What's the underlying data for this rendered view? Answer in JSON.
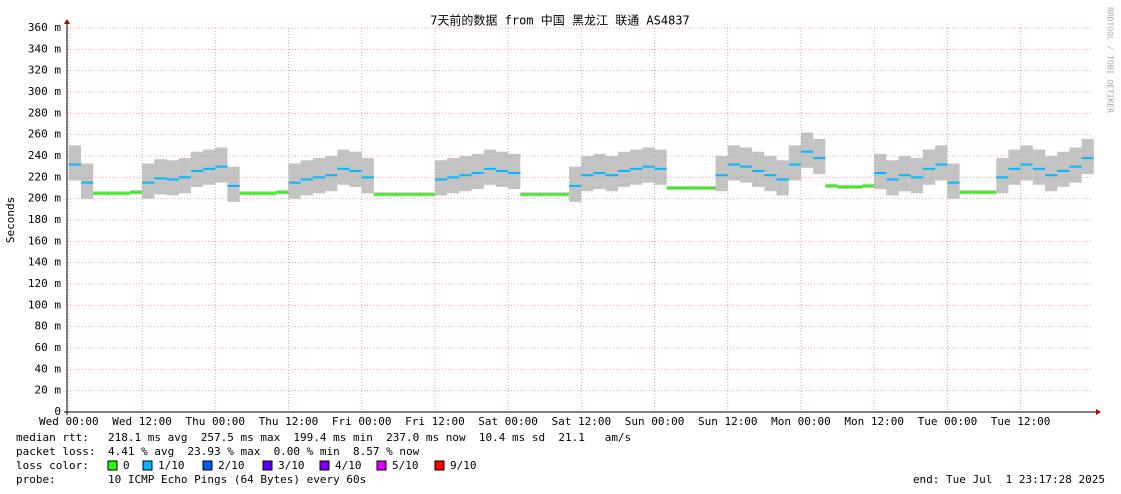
{
  "chart_data": {
    "type": "smokeping",
    "title": "7天前的数据 from 中国 黑龙江 联通 AS4837",
    "y_label": "Seconds",
    "watermark": "RRDTOOL / TOBI OETIKER",
    "xlim": [
      -0.3,
      167.7
    ],
    "xticks": [
      {
        "value": 0,
        "label": "Wed 00:00"
      },
      {
        "value": 12,
        "label": "Wed 12:00"
      },
      {
        "value": 24,
        "label": "Thu 00:00"
      },
      {
        "value": 36,
        "label": "Thu 12:00"
      },
      {
        "value": 48,
        "label": "Fri 00:00"
      },
      {
        "value": 60,
        "label": "Fri 12:00"
      },
      {
        "value": 72,
        "label": "Sat 00:00"
      },
      {
        "value": 84,
        "label": "Sat 12:00"
      },
      {
        "value": 96,
        "label": "Sun 00:00"
      },
      {
        "value": 108,
        "label": "Sun 12:00"
      },
      {
        "value": 120,
        "label": "Mon 00:00"
      },
      {
        "value": 132,
        "label": "Mon 12:00"
      },
      {
        "value": 144,
        "label": "Tue 00:00"
      },
      {
        "value": 156,
        "label": "Tue 12:00"
      }
    ],
    "ylim": [
      0,
      0.36
    ],
    "yticks": [
      0,
      {
        "value": 0.02,
        "label": "20 m"
      },
      {
        "value": 0.04,
        "label": "40 m"
      },
      {
        "value": 0.06,
        "label": "60 m"
      },
      {
        "value": 0.08,
        "label": "80 m"
      },
      {
        "value": 0.1,
        "label": "100 m"
      },
      {
        "value": 0.12,
        "label": "120 m"
      },
      {
        "value": 0.14,
        "label": "140 m"
      },
      {
        "value": 0.16,
        "label": "160 m"
      },
      {
        "value": 0.18,
        "label": "180 m"
      },
      {
        "value": 0.2,
        "label": "200 m"
      },
      {
        "value": 0.22,
        "label": "220 m"
      },
      {
        "value": 0.24,
        "label": "240 m"
      },
      {
        "value": 0.26,
        "label": "260 m"
      },
      {
        "value": 0.28,
        "label": "280 m"
      },
      {
        "value": 0.3,
        "label": "300 m"
      },
      {
        "value": 0.32,
        "label": "320 m"
      },
      {
        "value": 0.34,
        "label": "340 m"
      },
      {
        "value": 0.36,
        "label": "360 m"
      }
    ],
    "grid": true,
    "x": [
      0,
      2,
      4,
      6,
      8,
      10,
      12,
      14,
      16,
      18,
      20,
      22,
      24,
      26,
      28,
      30,
      32,
      34,
      36,
      38,
      40,
      42,
      44,
      46,
      48,
      50,
      52,
      54,
      56,
      58,
      60,
      62,
      64,
      66,
      68,
      70,
      72,
      74,
      76,
      78,
      80,
      82,
      84,
      86,
      88,
      90,
      92,
      94,
      96,
      98,
      100,
      102,
      104,
      106,
      108,
      110,
      112,
      114,
      116,
      118,
      120,
      122,
      124,
      126,
      128,
      130,
      132,
      134,
      136,
      138,
      140,
      142,
      144,
      146,
      148,
      150,
      152,
      154,
      156,
      158,
      160,
      162,
      164,
      166
    ],
    "median": [
      0.232,
      0.215,
      0.205,
      0.205,
      0.205,
      0.206,
      0.215,
      0.219,
      0.218,
      0.22,
      0.226,
      0.228,
      0.23,
      0.212,
      0.205,
      0.205,
      0.205,
      0.206,
      0.215,
      0.218,
      0.22,
      0.222,
      0.228,
      0.226,
      0.22,
      0.204,
      0.204,
      0.204,
      0.204,
      0.204,
      0.218,
      0.22,
      0.222,
      0.224,
      0.228,
      0.226,
      0.224,
      0.204,
      0.204,
      0.204,
      0.204,
      0.212,
      0.222,
      0.224,
      0.222,
      0.226,
      0.228,
      0.23,
      0.228,
      0.21,
      0.21,
      0.21,
      0.21,
      0.222,
      0.232,
      0.23,
      0.226,
      0.222,
      0.218,
      0.232,
      0.244,
      0.238,
      0.212,
      0.211,
      0.211,
      0.212,
      0.224,
      0.218,
      0.222,
      0.22,
      0.228,
      0.232,
      0.215,
      0.206,
      0.206,
      0.206,
      0.22,
      0.228,
      0.232,
      0.228,
      0.222,
      0.226,
      0.23,
      0.238
    ],
    "smoke_low": [
      0.217,
      0.2,
      0.203,
      0.203,
      0.203,
      0.204,
      0.2,
      0.204,
      0.203,
      0.205,
      0.211,
      0.213,
      0.215,
      0.197,
      0.203,
      0.203,
      0.203,
      0.204,
      0.2,
      0.203,
      0.205,
      0.207,
      0.213,
      0.211,
      0.205,
      0.202,
      0.202,
      0.202,
      0.202,
      0.202,
      0.203,
      0.205,
      0.207,
      0.209,
      0.213,
      0.211,
      0.209,
      0.202,
      0.202,
      0.202,
      0.202,
      0.197,
      0.207,
      0.209,
      0.207,
      0.211,
      0.213,
      0.215,
      0.213,
      0.208,
      0.208,
      0.208,
      0.208,
      0.207,
      0.217,
      0.215,
      0.211,
      0.207,
      0.203,
      0.217,
      0.229,
      0.223,
      0.21,
      0.209,
      0.209,
      0.21,
      0.209,
      0.203,
      0.207,
      0.205,
      0.213,
      0.217,
      0.2,
      0.204,
      0.204,
      0.204,
      0.205,
      0.213,
      0.217,
      0.213,
      0.207,
      0.211,
      0.215,
      0.223
    ],
    "smoke_high": [
      0.25,
      0.233,
      0.207,
      0.207,
      0.207,
      0.208,
      0.233,
      0.237,
      0.236,
      0.238,
      0.244,
      0.246,
      0.248,
      0.23,
      0.207,
      0.207,
      0.207,
      0.208,
      0.233,
      0.236,
      0.238,
      0.24,
      0.246,
      0.244,
      0.238,
      0.206,
      0.206,
      0.206,
      0.206,
      0.206,
      0.236,
      0.238,
      0.24,
      0.242,
      0.246,
      0.244,
      0.242,
      0.206,
      0.206,
      0.206,
      0.206,
      0.23,
      0.24,
      0.242,
      0.24,
      0.244,
      0.246,
      0.248,
      0.246,
      0.212,
      0.212,
      0.212,
      0.212,
      0.24,
      0.25,
      0.248,
      0.244,
      0.24,
      0.236,
      0.25,
      0.262,
      0.256,
      0.214,
      0.213,
      0.213,
      0.214,
      0.242,
      0.236,
      0.24,
      0.238,
      0.246,
      0.25,
      0.233,
      0.208,
      0.208,
      0.208,
      0.238,
      0.246,
      0.25,
      0.246,
      0.24,
      0.244,
      0.248,
      0.256
    ],
    "loss": [
      1,
      1,
      0,
      0,
      0,
      0,
      1,
      1,
      1,
      1,
      1,
      1,
      1,
      1,
      0,
      0,
      0,
      0,
      1,
      1,
      1,
      1,
      1,
      1,
      1,
      0,
      0,
      0,
      0,
      0,
      1,
      1,
      1,
      1,
      1,
      1,
      1,
      0,
      0,
      0,
      0,
      1,
      1,
      1,
      1,
      1,
      1,
      1,
      1,
      0,
      0,
      0,
      0,
      1,
      1,
      1,
      1,
      1,
      1,
      1,
      1,
      1,
      0,
      0,
      0,
      0,
      1,
      1,
      1,
      1,
      1,
      1,
      1,
      0,
      0,
      0,
      1,
      1,
      1,
      1,
      1,
      1,
      1,
      1
    ],
    "legend_label": "loss color:",
    "legend": [
      {
        "name": "0",
        "color": "#26ff00"
      },
      {
        "name": "1/10",
        "color": "#00b8ff"
      },
      {
        "name": "2/10",
        "color": "#0059ff"
      },
      {
        "name": "3/10",
        "color": "#5e00ff"
      },
      {
        "name": "4/10",
        "color": "#7e00ff"
      },
      {
        "name": "5/10",
        "color": "#dd00ff"
      },
      {
        "name": "9/10",
        "color": "#ff0000"
      }
    ],
    "stats": [
      {
        "label": "median rtt:",
        "text": "218.1 ms avg  257.5 ms max  199.4 ms min  237.0 ms now  10.4 ms sd  21.1   am/s"
      },
      {
        "label": "packet loss:",
        "text": "4.41 % avg  23.93 % max  0.00 % min  8.57 % now"
      }
    ],
    "probe_label": "probe:",
    "probe": "10 ICMP Echo Pings (64 Bytes) every 60s",
    "end": "end: Tue Jul  1 23:17:28 2025"
  }
}
